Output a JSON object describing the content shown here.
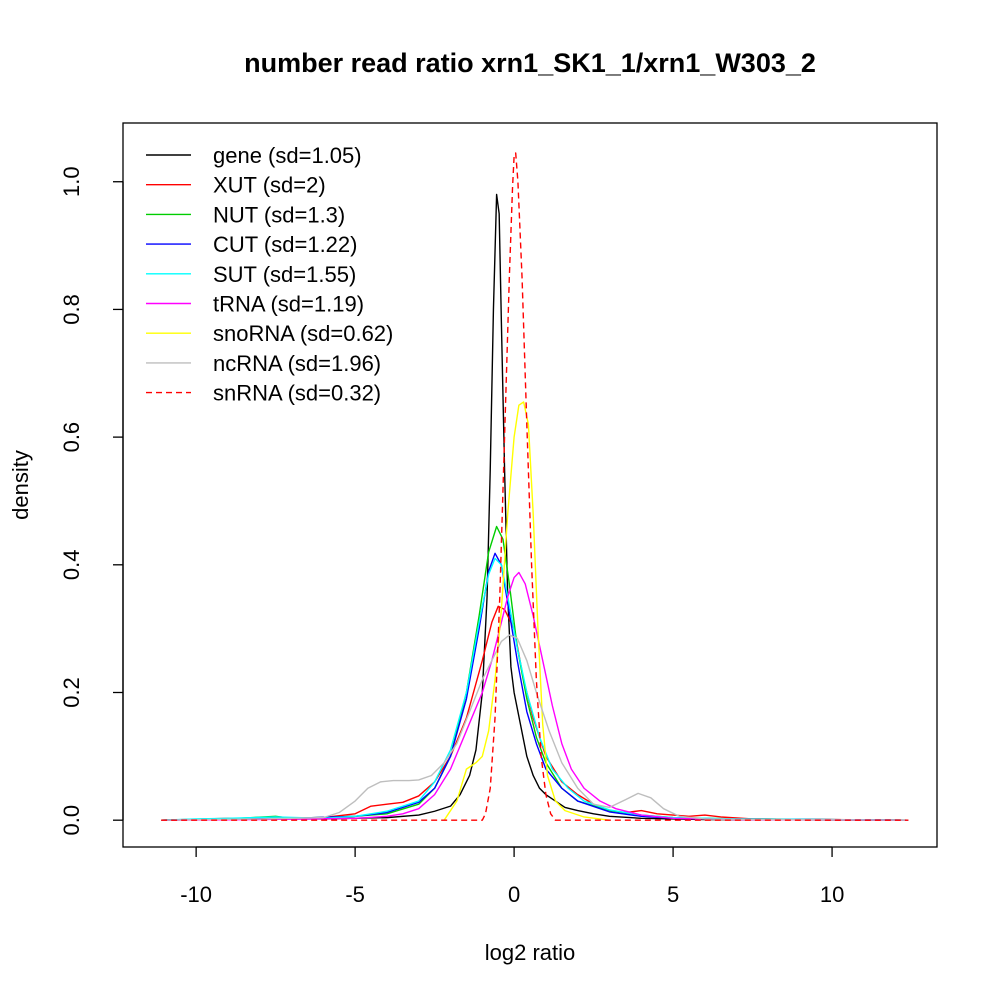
{
  "chart_data": {
    "type": "line",
    "title": "number read ratio xrn1_SK1_1/xrn1_W303_2",
    "xlabel": "log2 ratio",
    "ylabel": "density",
    "xlim": [
      -12.3,
      13.3
    ],
    "ylim": [
      -0.042,
      1.092
    ],
    "x_ticks": [
      -10,
      -5,
      0,
      5,
      10
    ],
    "x_tick_labels": [
      "-10",
      "-5",
      "0",
      "5",
      "10"
    ],
    "y_ticks": [
      0.0,
      0.2,
      0.4,
      0.6,
      0.8,
      1.0
    ],
    "y_tick_labels": [
      "0.0",
      "0.2",
      "0.4",
      "0.6",
      "0.8",
      "1.0"
    ],
    "grid": false,
    "legend_position": "top-left",
    "series": [
      {
        "name": "gene (sd=1.05)",
        "color": "#000000",
        "dash": "solid",
        "points": [
          [
            -11.1,
            0
          ],
          [
            -9,
            0.002
          ],
          [
            -6,
            0.002
          ],
          [
            -4,
            0.004
          ],
          [
            -3,
            0.008
          ],
          [
            -2.5,
            0.014
          ],
          [
            -2,
            0.022
          ],
          [
            -1.7,
            0.04
          ],
          [
            -1.4,
            0.07
          ],
          [
            -1.2,
            0.11
          ],
          [
            -1.0,
            0.2
          ],
          [
            -0.85,
            0.35
          ],
          [
            -0.75,
            0.55
          ],
          [
            -0.65,
            0.8
          ],
          [
            -0.55,
            0.98
          ],
          [
            -0.47,
            0.95
          ],
          [
            -0.4,
            0.78
          ],
          [
            -0.3,
            0.55
          ],
          [
            -0.2,
            0.35
          ],
          [
            -0.1,
            0.24
          ],
          [
            0,
            0.2
          ],
          [
            0.2,
            0.15
          ],
          [
            0.4,
            0.1
          ],
          [
            0.6,
            0.07
          ],
          [
            0.8,
            0.05
          ],
          [
            1.0,
            0.04
          ],
          [
            1.3,
            0.03
          ],
          [
            1.6,
            0.02
          ],
          [
            2,
            0.015
          ],
          [
            2.5,
            0.01
          ],
          [
            3,
            0.006
          ],
          [
            4,
            0.003
          ],
          [
            6,
            0.001
          ],
          [
            12.4,
            0
          ]
        ]
      },
      {
        "name": "XUT (sd=2)",
        "color": "#ff0000",
        "dash": "solid",
        "points": [
          [
            -11.1,
            0
          ],
          [
            -9,
            0.003
          ],
          [
            -7,
            0.003
          ],
          [
            -6,
            0.004
          ],
          [
            -5,
            0.01
          ],
          [
            -4.5,
            0.022
          ],
          [
            -4,
            0.025
          ],
          [
            -3.5,
            0.028
          ],
          [
            -3,
            0.038
          ],
          [
            -2.5,
            0.06
          ],
          [
            -2,
            0.1
          ],
          [
            -1.5,
            0.16
          ],
          [
            -1,
            0.25
          ],
          [
            -0.7,
            0.31
          ],
          [
            -0.5,
            0.335
          ],
          [
            -0.3,
            0.33
          ],
          [
            0,
            0.3
          ],
          [
            0.3,
            0.22
          ],
          [
            0.6,
            0.16
          ],
          [
            1,
            0.1
          ],
          [
            1.5,
            0.06
          ],
          [
            2,
            0.04
          ],
          [
            2.5,
            0.025
          ],
          [
            3,
            0.015
          ],
          [
            3.5,
            0.012
          ],
          [
            4,
            0.015
          ],
          [
            4.5,
            0.01
          ],
          [
            5,
            0.008
          ],
          [
            5.5,
            0.006
          ],
          [
            6,
            0.008
          ],
          [
            6.5,
            0.005
          ],
          [
            7.5,
            0.002
          ],
          [
            12.4,
            0
          ]
        ]
      },
      {
        "name": "NUT (sd=1.3)",
        "color": "#00cd00",
        "dash": "solid",
        "points": [
          [
            -11.1,
            0
          ],
          [
            -9,
            0.002
          ],
          [
            -7.5,
            0.006
          ],
          [
            -7,
            0.003
          ],
          [
            -5,
            0.006
          ],
          [
            -4,
            0.01
          ],
          [
            -3,
            0.025
          ],
          [
            -2.5,
            0.05
          ],
          [
            -2,
            0.1
          ],
          [
            -1.5,
            0.2
          ],
          [
            -1.1,
            0.32
          ],
          [
            -0.8,
            0.42
          ],
          [
            -0.55,
            0.46
          ],
          [
            -0.35,
            0.44
          ],
          [
            -0.15,
            0.37
          ],
          [
            0.1,
            0.27
          ],
          [
            0.4,
            0.19
          ],
          [
            0.7,
            0.13
          ],
          [
            1,
            0.09
          ],
          [
            1.5,
            0.05
          ],
          [
            2,
            0.03
          ],
          [
            3,
            0.015
          ],
          [
            4,
            0.008
          ],
          [
            5,
            0.004
          ],
          [
            7,
            0.002
          ],
          [
            12.4,
            0
          ]
        ]
      },
      {
        "name": "CUT (sd=1.22)",
        "color": "#0000ff",
        "dash": "solid",
        "points": [
          [
            -11.1,
            0
          ],
          [
            -9,
            0.002
          ],
          [
            -7,
            0.003
          ],
          [
            -5,
            0.006
          ],
          [
            -4,
            0.012
          ],
          [
            -3,
            0.028
          ],
          [
            -2.5,
            0.05
          ],
          [
            -2,
            0.1
          ],
          [
            -1.5,
            0.19
          ],
          [
            -1.1,
            0.3
          ],
          [
            -0.8,
            0.39
          ],
          [
            -0.6,
            0.418
          ],
          [
            -0.4,
            0.4
          ],
          [
            -0.2,
            0.34
          ],
          [
            0.1,
            0.25
          ],
          [
            0.4,
            0.17
          ],
          [
            0.7,
            0.12
          ],
          [
            1,
            0.08
          ],
          [
            1.5,
            0.05
          ],
          [
            2,
            0.03
          ],
          [
            3,
            0.013
          ],
          [
            4,
            0.006
          ],
          [
            5,
            0.003
          ],
          [
            7,
            0.002
          ],
          [
            12.4,
            0
          ]
        ]
      },
      {
        "name": "SUT (sd=1.55)",
        "color": "#00ffff",
        "dash": "solid",
        "points": [
          [
            -11.1,
            0
          ],
          [
            -10,
            0.002
          ],
          [
            -9,
            0.003
          ],
          [
            -7.5,
            0.005
          ],
          [
            -6,
            0.003
          ],
          [
            -5,
            0.006
          ],
          [
            -4,
            0.014
          ],
          [
            -3,
            0.03
          ],
          [
            -2.5,
            0.06
          ],
          [
            -2,
            0.11
          ],
          [
            -1.5,
            0.2
          ],
          [
            -1.1,
            0.31
          ],
          [
            -0.8,
            0.385
          ],
          [
            -0.6,
            0.41
          ],
          [
            -0.4,
            0.4
          ],
          [
            -0.2,
            0.35
          ],
          [
            0.1,
            0.27
          ],
          [
            0.4,
            0.2
          ],
          [
            0.8,
            0.13
          ],
          [
            1.2,
            0.08
          ],
          [
            1.7,
            0.05
          ],
          [
            2.2,
            0.03
          ],
          [
            3,
            0.016
          ],
          [
            4,
            0.008
          ],
          [
            5,
            0.004
          ],
          [
            7,
            0.002
          ],
          [
            12.4,
            0
          ]
        ]
      },
      {
        "name": "tRNA (sd=1.19)",
        "color": "#ff00ff",
        "dash": "solid",
        "points": [
          [
            -11.1,
            0
          ],
          [
            -8,
            0.001
          ],
          [
            -5,
            0.003
          ],
          [
            -4,
            0.006
          ],
          [
            -3.5,
            0.01
          ],
          [
            -3,
            0.018
          ],
          [
            -2.5,
            0.04
          ],
          [
            -2,
            0.08
          ],
          [
            -1.5,
            0.14
          ],
          [
            -1,
            0.2
          ],
          [
            -0.7,
            0.25
          ],
          [
            -0.4,
            0.31
          ],
          [
            -0.2,
            0.35
          ],
          [
            0,
            0.38
          ],
          [
            0.15,
            0.388
          ],
          [
            0.35,
            0.37
          ],
          [
            0.6,
            0.32
          ],
          [
            0.9,
            0.25
          ],
          [
            1.2,
            0.18
          ],
          [
            1.5,
            0.12
          ],
          [
            1.8,
            0.08
          ],
          [
            2.2,
            0.05
          ],
          [
            2.7,
            0.03
          ],
          [
            3.2,
            0.018
          ],
          [
            4,
            0.008
          ],
          [
            5,
            0.003
          ],
          [
            7,
            0.001
          ],
          [
            12.4,
            0
          ]
        ]
      },
      {
        "name": "snoRNA (sd=0.62)",
        "color": "#ffff00",
        "dash": "solid",
        "points": [
          [
            -2.2,
            0
          ],
          [
            -1.8,
            0.03
          ],
          [
            -1.5,
            0.08
          ],
          [
            -1.2,
            0.09
          ],
          [
            -1.0,
            0.1
          ],
          [
            -0.8,
            0.14
          ],
          [
            -0.6,
            0.22
          ],
          [
            -0.4,
            0.33
          ],
          [
            -0.2,
            0.48
          ],
          [
            0,
            0.6
          ],
          [
            0.15,
            0.65
          ],
          [
            0.3,
            0.655
          ],
          [
            0.45,
            0.62
          ],
          [
            0.6,
            0.48
          ],
          [
            0.75,
            0.3
          ],
          [
            0.9,
            0.15
          ],
          [
            1.05,
            0.07
          ],
          [
            1.3,
            0.03
          ],
          [
            1.6,
            0.015
          ],
          [
            2.2,
            0.005
          ],
          [
            3,
            0
          ]
        ]
      },
      {
        "name": "ncRNA (sd=1.96)",
        "color": "#bebebe",
        "dash": "solid",
        "points": [
          [
            -11.1,
            0
          ],
          [
            -8,
            0.002
          ],
          [
            -6,
            0.004
          ],
          [
            -5.5,
            0.012
          ],
          [
            -5,
            0.03
          ],
          [
            -4.6,
            0.05
          ],
          [
            -4.2,
            0.06
          ],
          [
            -3.8,
            0.062
          ],
          [
            -3.3,
            0.062
          ],
          [
            -3,
            0.063
          ],
          [
            -2.6,
            0.07
          ],
          [
            -2.2,
            0.09
          ],
          [
            -1.8,
            0.12
          ],
          [
            -1.4,
            0.17
          ],
          [
            -1.0,
            0.22
          ],
          [
            -0.7,
            0.25
          ],
          [
            -0.4,
            0.28
          ],
          [
            -0.15,
            0.29
          ],
          [
            0.1,
            0.285
          ],
          [
            0.4,
            0.25
          ],
          [
            0.7,
            0.2
          ],
          [
            1.1,
            0.14
          ],
          [
            1.5,
            0.09
          ],
          [
            2,
            0.05
          ],
          [
            2.5,
            0.025
          ],
          [
            3,
            0.02
          ],
          [
            3.5,
            0.032
          ],
          [
            3.9,
            0.042
          ],
          [
            4.3,
            0.035
          ],
          [
            4.7,
            0.018
          ],
          [
            5.2,
            0.006
          ],
          [
            6,
            0.002
          ],
          [
            8,
            0.001
          ],
          [
            12.4,
            0
          ]
        ]
      },
      {
        "name": "snRNA (sd=0.32)",
        "color": "#ff0000",
        "dash": "dashed",
        "points": [
          [
            -11.1,
            0
          ],
          [
            -1.0,
            0
          ],
          [
            -0.9,
            0.01
          ],
          [
            -0.75,
            0.05
          ],
          [
            -0.6,
            0.16
          ],
          [
            -0.45,
            0.35
          ],
          [
            -0.3,
            0.6
          ],
          [
            -0.15,
            0.85
          ],
          [
            -0.05,
            0.99
          ],
          [
            0.0,
            1.04
          ],
          [
            0.05,
            1.045
          ],
          [
            0.12,
            1.0
          ],
          [
            0.25,
            0.85
          ],
          [
            0.4,
            0.62
          ],
          [
            0.55,
            0.4
          ],
          [
            0.7,
            0.22
          ],
          [
            0.85,
            0.1
          ],
          [
            1.0,
            0.04
          ],
          [
            1.15,
            0.01
          ],
          [
            1.3,
            0
          ],
          [
            12.4,
            0
          ]
        ]
      }
    ]
  }
}
